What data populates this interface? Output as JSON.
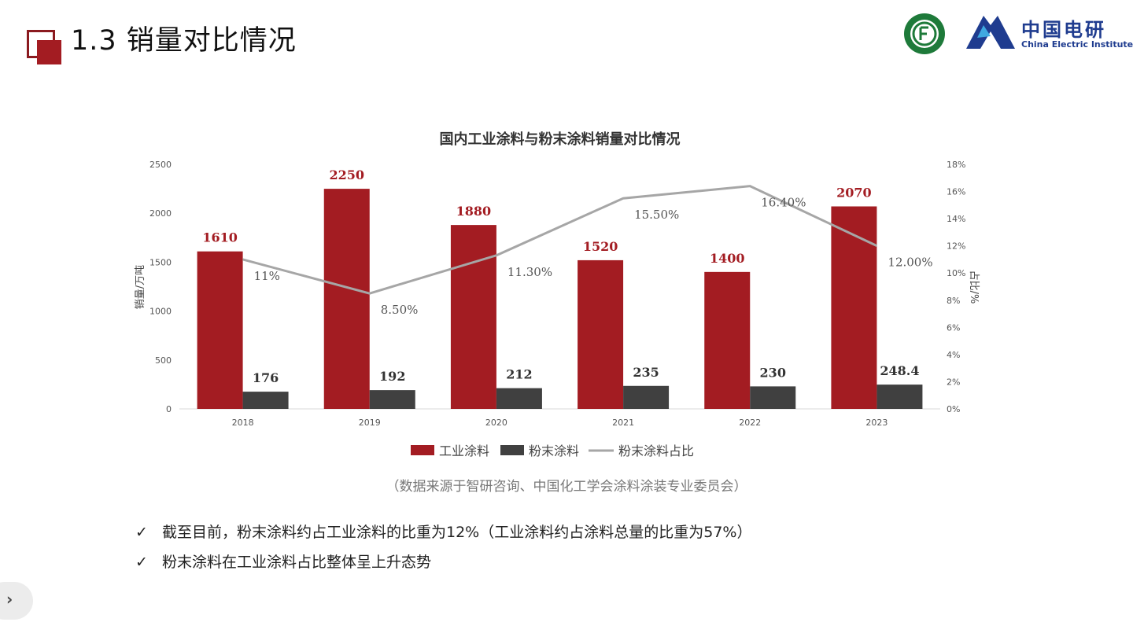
{
  "page": {
    "title": "1.3 销量对比情况",
    "logo_cn": "中国电研",
    "logo_en": "China Electric Institute",
    "source": "（数据来源于智研咨询、中国化工学会涂料涂装专业委员会）",
    "bullets": [
      "截至目前，粉末涂料约占工业涂料的比重为12%（工业涂料约占涂料总量的比重为57%）",
      "粉末涂料在工业涂料占比整体呈上升态势"
    ],
    "check_glyph": "✓",
    "nav_glyph": "›",
    "colors": {
      "accent": "#a31c22",
      "dark": "#404040",
      "line": "#a6a6a6",
      "logo_blue": "#1f3c8f",
      "seal_green": "#1e7a3a"
    }
  },
  "chart_data": {
    "type": "bar",
    "title": "国内工业涂料与粉末涂料销量对比情况",
    "ylabel": "销量/万吨",
    "y2label": "占比/%",
    "categories": [
      "2018",
      "2019",
      "2020",
      "2021",
      "2022",
      "2023"
    ],
    "ylim": [
      0,
      2500
    ],
    "yticks": [
      "0",
      "500",
      "1000",
      "1500",
      "2000",
      "2500"
    ],
    "y2lim": [
      0,
      18
    ],
    "y2ticks": [
      "0%",
      "2%",
      "4%",
      "6%",
      "8%",
      "10%",
      "12%",
      "14%",
      "16%",
      "18%"
    ],
    "series": [
      {
        "name": "工业涂料",
        "type": "bar",
        "color": "#a31c22",
        "values": [
          1610,
          2250,
          1880,
          1520,
          1400,
          2070
        ],
        "labels": [
          "1610",
          "2250",
          "1880",
          "1520",
          "1400",
          "2070"
        ]
      },
      {
        "name": "粉末涂料",
        "type": "bar",
        "color": "#404040",
        "values": [
          176,
          192,
          212,
          235,
          230,
          248.4
        ],
        "labels": [
          "176",
          "192",
          "212",
          "235",
          "230",
          "248.4"
        ]
      },
      {
        "name": "粉末涂料占比",
        "type": "line",
        "axis": "right",
        "color": "#a6a6a6",
        "values": [
          11,
          8.5,
          11.3,
          15.5,
          16.4,
          12
        ],
        "labels": [
          "11%",
          "8.50%",
          "11.30%",
          "15.50%",
          "16.40%",
          "12.00%"
        ]
      }
    ],
    "legend_position": "bottom",
    "grid": false
  }
}
